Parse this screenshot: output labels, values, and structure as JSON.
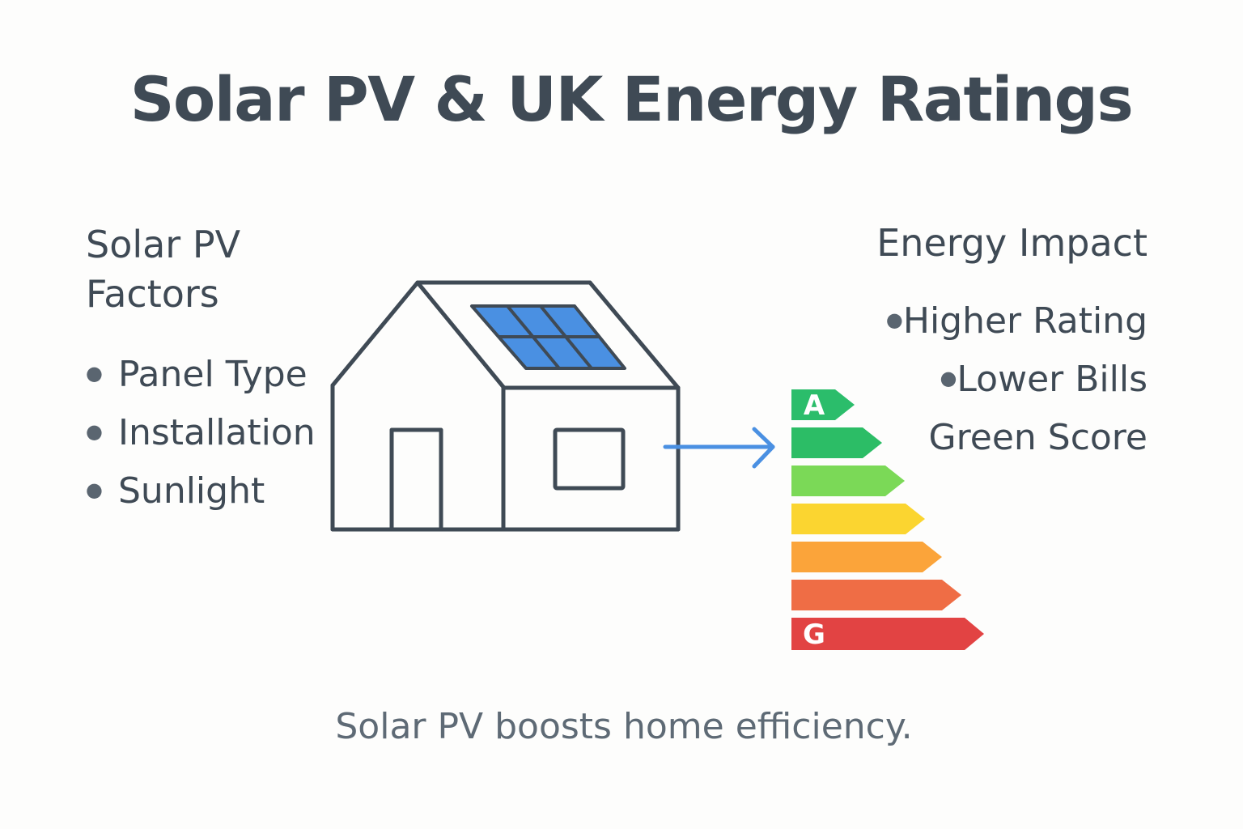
{
  "title": "Solar PV & UK Energy Ratings",
  "left": {
    "heading_line1": "Solar PV",
    "heading_line2": "Factors",
    "items": [
      "Panel Type",
      "Installation",
      "Sunlight"
    ]
  },
  "right": {
    "heading": "Energy Impact",
    "items": [
      "Higher Rating",
      "Lower Bills",
      "Green Score"
    ]
  },
  "caption": "Solar PV boosts home efficiency.",
  "rating_scale": {
    "top_label": "A",
    "bottom_label": "G",
    "bands": [
      {
        "color": "#2bbd6b",
        "label": "A"
      },
      {
        "color": "#2cbd66",
        "label": ""
      },
      {
        "color": "#7bd957",
        "label": ""
      },
      {
        "color": "#fbd530",
        "label": ""
      },
      {
        "color": "#fba43a",
        "label": ""
      },
      {
        "color": "#ef6d45",
        "label": ""
      },
      {
        "color": "#e24343",
        "label": "G"
      }
    ]
  },
  "colors": {
    "outline": "#3f4a55",
    "panel": "#4a90e2",
    "arrow": "#4a90e2"
  },
  "icons": [
    "house-icon",
    "solar-panel-icon",
    "arrow-right-icon",
    "energy-rating-icon"
  ]
}
